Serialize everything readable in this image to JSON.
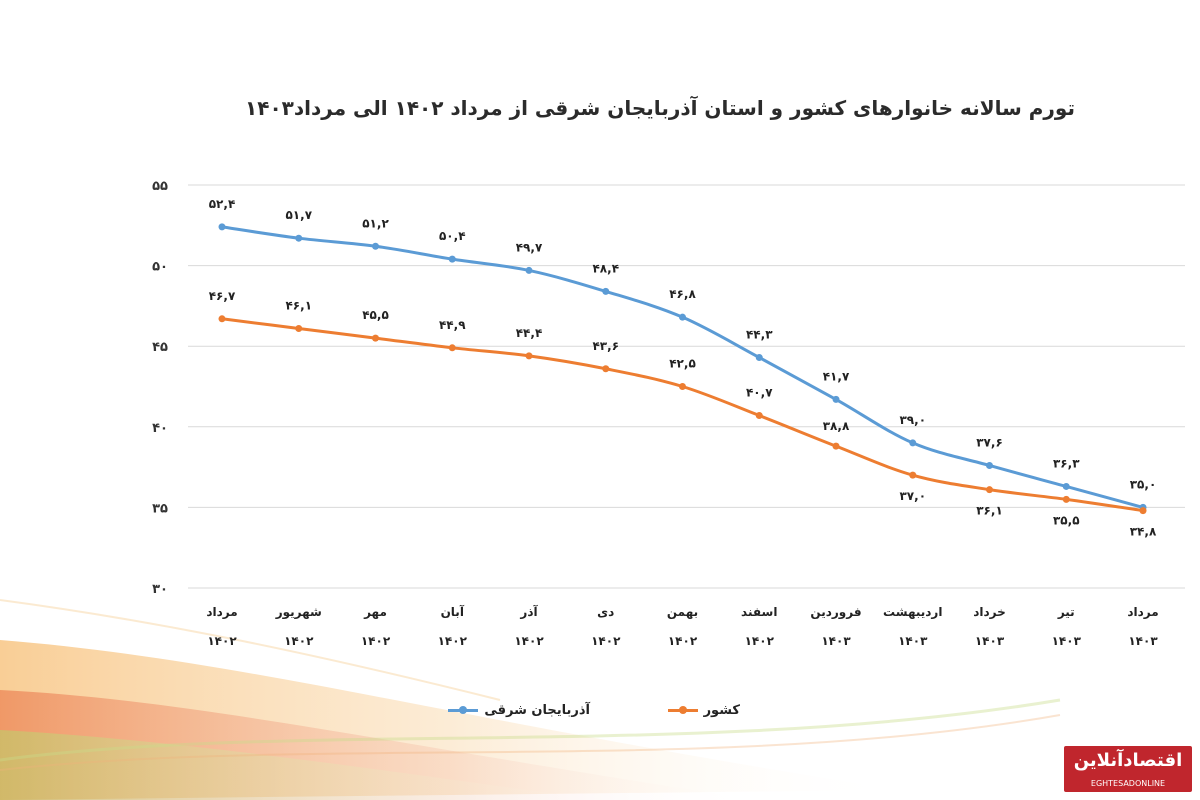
{
  "title": "تورم سالانه خانوارهای کشور و استان آذربایجان شرقی از مرداد ۱۴۰۲ الی مرداد۱۴۰۳",
  "colors": {
    "east_azerbaijan": "#5b9bd5",
    "country": "#ed7d31",
    "grid": "#d9d9d9"
  },
  "chart_data": {
    "type": "line",
    "ylim": [
      30,
      55
    ],
    "yticks": [
      "۳۰",
      "۳۵",
      "۴۰",
      "۴۵",
      "۵۰",
      "۵۵"
    ],
    "ytick_values": [
      30,
      35,
      40,
      45,
      50,
      55
    ],
    "grid": true,
    "legend_position": "bottom",
    "categories": [
      {
        "month": "مرداد",
        "year": "۱۴۰۲"
      },
      {
        "month": "شهریور",
        "year": "۱۴۰۲"
      },
      {
        "month": "مهر",
        "year": "۱۴۰۲"
      },
      {
        "month": "آبان",
        "year": "۱۴۰۲"
      },
      {
        "month": "آذر",
        "year": "۱۴۰۲"
      },
      {
        "month": "دی",
        "year": "۱۴۰۲"
      },
      {
        "month": "بهمن",
        "year": "۱۴۰۲"
      },
      {
        "month": "اسفند",
        "year": "۱۴۰۲"
      },
      {
        "month": "فروردین",
        "year": "۱۴۰۳"
      },
      {
        "month": "اردیبهشت",
        "year": "۱۴۰۳"
      },
      {
        "month": "خرداد",
        "year": "۱۴۰۳"
      },
      {
        "month": "تیر",
        "year": "۱۴۰۳"
      },
      {
        "month": "مرداد",
        "year": "۱۴۰۳"
      }
    ],
    "series": [
      {
        "name": "آذربایجان شرقی",
        "color": "#5b9bd5",
        "values": [
          52.4,
          51.7,
          51.2,
          50.4,
          49.7,
          48.4,
          46.8,
          44.3,
          41.7,
          39.0,
          37.6,
          36.3,
          35.0
        ],
        "labels": [
          "۵۲,۴",
          "۵۱,۷",
          "۵۱,۲",
          "۵۰,۴",
          "۴۹,۷",
          "۴۸,۴",
          "۴۶,۸",
          "۴۴,۳",
          "۴۱,۷",
          "۳۹,۰",
          "۳۷,۶",
          "۳۶,۳",
          "۳۵,۰"
        ]
      },
      {
        "name": "کشور",
        "color": "#ed7d31",
        "values": [
          46.7,
          46.1,
          45.5,
          44.9,
          44.4,
          43.6,
          42.5,
          40.7,
          38.8,
          37.0,
          36.1,
          35.5,
          34.8
        ],
        "labels": [
          "۴۶,۷",
          "۴۶,۱",
          "۴۵,۵",
          "۴۴,۹",
          "۴۴,۴",
          "۴۳,۶",
          "۴۲,۵",
          "۴۰,۷",
          "۳۸,۸",
          "۳۷,۰",
          "۳۶,۱",
          "۳۵,۵",
          "۳۴,۸"
        ]
      }
    ]
  },
  "logo": {
    "text": "اقتصادآنلاین",
    "subtext": "EGHTESADONLINE"
  }
}
